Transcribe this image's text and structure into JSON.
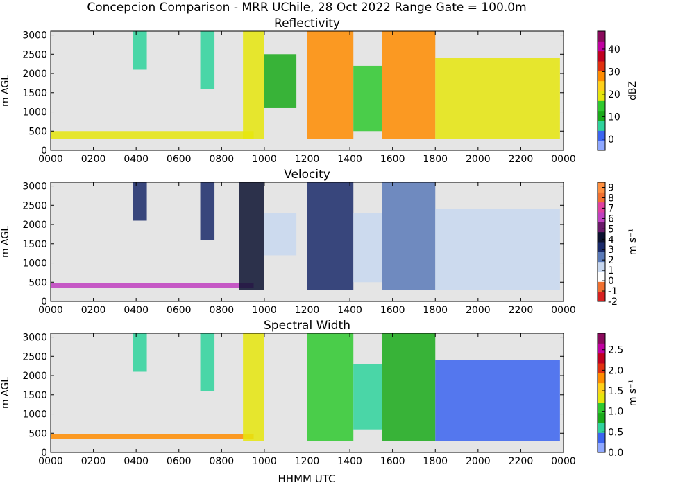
{
  "figure": {
    "title": "Concepcion Comparison - MRR UChile, 28 Oct 2022 Range Gate = 100.0m",
    "xlabel": "HHMM UTC"
  },
  "chart_data": [
    {
      "type": "heatmap",
      "title": "Reflectivity",
      "xlabel": "",
      "ylabel": "m AGL",
      "xticks": [
        "0000",
        "0200",
        "0400",
        "0600",
        "0800",
        "1000",
        "1200",
        "1400",
        "1600",
        "1800",
        "2000",
        "2200",
        "0000"
      ],
      "yticks": [
        0,
        500,
        1000,
        1500,
        2000,
        2500,
        3000
      ],
      "ylim": [
        0,
        3100
      ],
      "colorbar": {
        "label": "dBZ",
        "range": [
          -5,
          48
        ],
        "ticks": [
          0,
          10,
          20,
          30,
          40
        ],
        "colors": [
          "#8fa8ff",
          "#3b64f0",
          "#2fd39c",
          "#1aaa1a",
          "#2fc92f",
          "#e6e60d",
          "#ffd11a",
          "#ff8c00",
          "#e03010",
          "#c00020",
          "#c000a0",
          "#8a0a5c"
        ]
      },
      "background": "#e5e5e5",
      "events": [
        {
          "start_hhmm": "0000",
          "end_hhmm": "0930",
          "base_m": 300,
          "top_m": 500,
          "value": 20,
          "note": "near-surface band"
        },
        {
          "start_hhmm": "0350",
          "end_hhmm": "0430",
          "base_m": 2100,
          "top_m": 3100,
          "value": 8
        },
        {
          "start_hhmm": "0700",
          "end_hhmm": "0740",
          "base_m": 1600,
          "top_m": 3100,
          "value": 5
        },
        {
          "start_hhmm": "0900",
          "end_hhmm": "1000",
          "base_m": 300,
          "top_m": 3100,
          "value": 20
        },
        {
          "start_hhmm": "1000",
          "end_hhmm": "1130",
          "base_m": 1100,
          "top_m": 2500,
          "value": 10
        },
        {
          "start_hhmm": "1200",
          "end_hhmm": "1410",
          "base_m": 300,
          "top_m": 3100,
          "value": 27
        },
        {
          "start_hhmm": "1410",
          "end_hhmm": "1530",
          "base_m": 500,
          "top_m": 2200,
          "value": 15
        },
        {
          "start_hhmm": "1530",
          "end_hhmm": "1800",
          "base_m": 300,
          "top_m": 3100,
          "value": 26
        },
        {
          "start_hhmm": "1800",
          "end_hhmm": "2350",
          "base_m": 300,
          "top_m": 2400,
          "value": 18
        }
      ]
    },
    {
      "type": "heatmap",
      "title": "Velocity",
      "xlabel": "",
      "ylabel": "m AGL",
      "xticks": [
        "0000",
        "0200",
        "0400",
        "0600",
        "0800",
        "1000",
        "1200",
        "1400",
        "1600",
        "1800",
        "2000",
        "2200",
        "0000"
      ],
      "yticks": [
        0,
        500,
        1000,
        1500,
        2000,
        2500,
        3000
      ],
      "ylim": [
        0,
        3100
      ],
      "colorbar": {
        "label": "m s⁻¹",
        "range": [
          -2,
          9.5
        ],
        "ticks": [
          -2,
          -1,
          0,
          1,
          2,
          3,
          4,
          5,
          6,
          7,
          8,
          9
        ],
        "colors": [
          "#d62020",
          "#f07030",
          "#ffffff",
          "#c8d8f0",
          "#5a7ab8",
          "#1a2a6a",
          "#0c1230",
          "#6a1a6a",
          "#c040c0",
          "#e040a0",
          "#f07030",
          "#ff9040"
        ]
      },
      "background": "#e5e5e5",
      "events": [
        {
          "start_hhmm": "0000",
          "end_hhmm": "0930",
          "base_m": 350,
          "top_m": 480,
          "value": 6.5,
          "note": "near-surface band"
        },
        {
          "start_hhmm": "0350",
          "end_hhmm": "0430",
          "base_m": 2100,
          "top_m": 3100,
          "value": 3.5
        },
        {
          "start_hhmm": "0700",
          "end_hhmm": "0740",
          "base_m": 1600,
          "top_m": 3100,
          "value": 3.5
        },
        {
          "start_hhmm": "0850",
          "end_hhmm": "1000",
          "base_m": 300,
          "top_m": 3100,
          "value": 4.5
        },
        {
          "start_hhmm": "1000",
          "end_hhmm": "1130",
          "base_m": 1200,
          "top_m": 2300,
          "value": 1.5
        },
        {
          "start_hhmm": "1200",
          "end_hhmm": "1410",
          "base_m": 300,
          "top_m": 3100,
          "value": 2.8
        },
        {
          "start_hhmm": "1410",
          "end_hhmm": "1530",
          "base_m": 500,
          "top_m": 2300,
          "value": 1.8
        },
        {
          "start_hhmm": "1530",
          "end_hhmm": "1800",
          "base_m": 300,
          "top_m": 3100,
          "value": 2.6
        },
        {
          "start_hhmm": "1800",
          "end_hhmm": "2350",
          "base_m": 300,
          "top_m": 2400,
          "value": 1.2
        }
      ]
    },
    {
      "type": "heatmap",
      "title": "Spectral Width",
      "xlabel": "HHMM UTC",
      "ylabel": "m AGL",
      "xticks": [
        "0000",
        "0200",
        "0400",
        "0600",
        "0800",
        "1000",
        "1200",
        "1400",
        "1600",
        "1800",
        "2000",
        "2200",
        "0000"
      ],
      "yticks": [
        0,
        500,
        1000,
        1500,
        2000,
        2500,
        3000
      ],
      "ylim": [
        0,
        3100
      ],
      "colorbar": {
        "label": "m s⁻¹",
        "range": [
          0,
          2.9
        ],
        "ticks": [
          0.0,
          0.5,
          1.0,
          1.5,
          2.0,
          2.5
        ],
        "colors": [
          "#8fa8ff",
          "#3b64f0",
          "#2fd39c",
          "#1aaa1a",
          "#2fc92f",
          "#e6e60d",
          "#ffd11a",
          "#ff8c00",
          "#e03010",
          "#c00020",
          "#c000a0",
          "#8a0a5c"
        ]
      },
      "background": "#e5e5e5",
      "events": [
        {
          "start_hhmm": "0000",
          "end_hhmm": "0930",
          "base_m": 350,
          "top_m": 480,
          "value": 1.8,
          "note": "near-surface band"
        },
        {
          "start_hhmm": "0350",
          "end_hhmm": "0430",
          "base_m": 2100,
          "top_m": 3100,
          "value": 0.6
        },
        {
          "start_hhmm": "0700",
          "end_hhmm": "0740",
          "base_m": 1600,
          "top_m": 3100,
          "value": 0.5
        },
        {
          "start_hhmm": "0900",
          "end_hhmm": "1000",
          "base_m": 300,
          "top_m": 3100,
          "value": 1.4
        },
        {
          "start_hhmm": "1200",
          "end_hhmm": "1410",
          "base_m": 300,
          "top_m": 3100,
          "value": 1.0
        },
        {
          "start_hhmm": "1410",
          "end_hhmm": "1530",
          "base_m": 600,
          "top_m": 2300,
          "value": 0.7
        },
        {
          "start_hhmm": "1530",
          "end_hhmm": "1800",
          "base_m": 300,
          "top_m": 3100,
          "value": 0.8
        },
        {
          "start_hhmm": "1800",
          "end_hhmm": "2350",
          "base_m": 300,
          "top_m": 2400,
          "value": 0.35
        }
      ]
    }
  ]
}
